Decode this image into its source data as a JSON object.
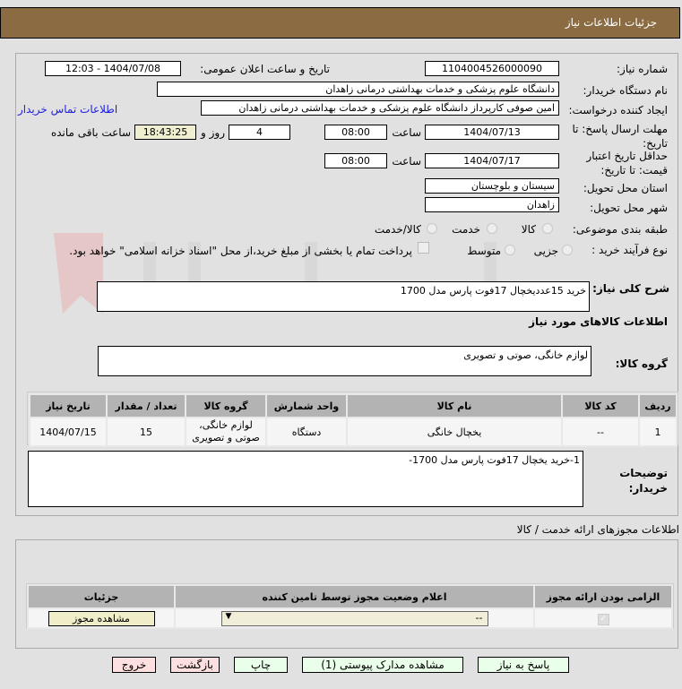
{
  "header": {
    "title": "جزئیات اطلاعات نیاز",
    "color": "#8b6b42"
  },
  "form": {
    "need_number_label": "شماره نیاز:",
    "need_number": "1104004526000090",
    "announce_label": "تاریخ و ساعت اعلان عمومی:",
    "announce_value": "1404/07/08 - 12:03",
    "buyer_label": "نام دستگاه خریدار:",
    "buyer": "دانشگاه علوم پزشکی و خدمات بهداشتی درمانی زاهدان",
    "creator_label": "ایجاد کننده درخواست:",
    "creator": "امین صوفی کارپرداز دانشگاه علوم پزشکی و خدمات بهداشتی درمانی زاهدان",
    "contact_link": "اطلاعات تماس خریدار",
    "deadline_label": "مهلت ارسال پاسخ: تا تاریخ:",
    "deadline_date": "1404/07/13",
    "time_label": "ساعت",
    "deadline_time": "08:00",
    "days": "4",
    "days_label": "روز و",
    "remaining": "18:43:25",
    "remaining_label": "ساعت باقی مانده",
    "validity_label": "حداقل تاریخ اعتبار قیمت: تا تاریخ:",
    "validity_date": "1404/07/17",
    "validity_time": "08:00",
    "province_label": "استان محل تحویل:",
    "province": "سیستان و بلوچستان",
    "city_label": "شهر محل تحویل:",
    "city": "زاهدان",
    "category_label": "طبقه بندی موضوعی:",
    "category_options": [
      "کالا",
      "خدمت",
      "کالا/خدمت"
    ],
    "category_selected": "کالا",
    "process_label": "نوع فرآیند خرید :",
    "process_options": [
      "جزیی",
      "متوسط"
    ],
    "payment_note": "پرداخت تمام یا بخشی از مبلغ خرید،از محل \"اسناد خزانه اسلامی\" خواهد بود.",
    "summary_label": "شرح کلی نیاز:",
    "summary": "خرید 15عددیخچال 17فوت پارس مدل 1700",
    "goods_section": "اطلاعات کالاهای مورد نیاز",
    "group_label": "گروه کالا:",
    "group": "لوازم خانگی، صوتی و تصویری"
  },
  "items_table": {
    "headers": [
      "ردیف",
      "کد کالا",
      "نام کالا",
      "واحد شمارش",
      "گروه کالا",
      "تعداد / مقدار",
      "تاریخ نیاز"
    ],
    "rows": [
      {
        "row": "1",
        "code": "--",
        "name": "یخچال خانگی",
        "unit": "دستگاه",
        "group": "لوازم خانگی، صوتی و تصویری",
        "qty": "15",
        "date": "1404/07/15"
      }
    ]
  },
  "buyer_notes_label": "توضیحات خریدار:",
  "buyer_notes": "1-خرید یخچال 17فوت پارس مدل 1700-",
  "permits": {
    "title": "اطلاعات مجوزهای ارائه خدمت / کالا",
    "headers": [
      "الزامی بودن ارائه مجوز",
      "اعلام وضعیت مجوز توسط تامین کننده",
      "جزئیات"
    ],
    "select_value": "--",
    "view_button": "مشاهده مجوز"
  },
  "buttons": {
    "reply": "پاسخ به نیاز",
    "attachments": "مشاهده مدارک پیوستی (1)",
    "print": "چاپ",
    "back": "بازگشت",
    "exit": "خروج"
  },
  "watermark": "AriaTender.net"
}
